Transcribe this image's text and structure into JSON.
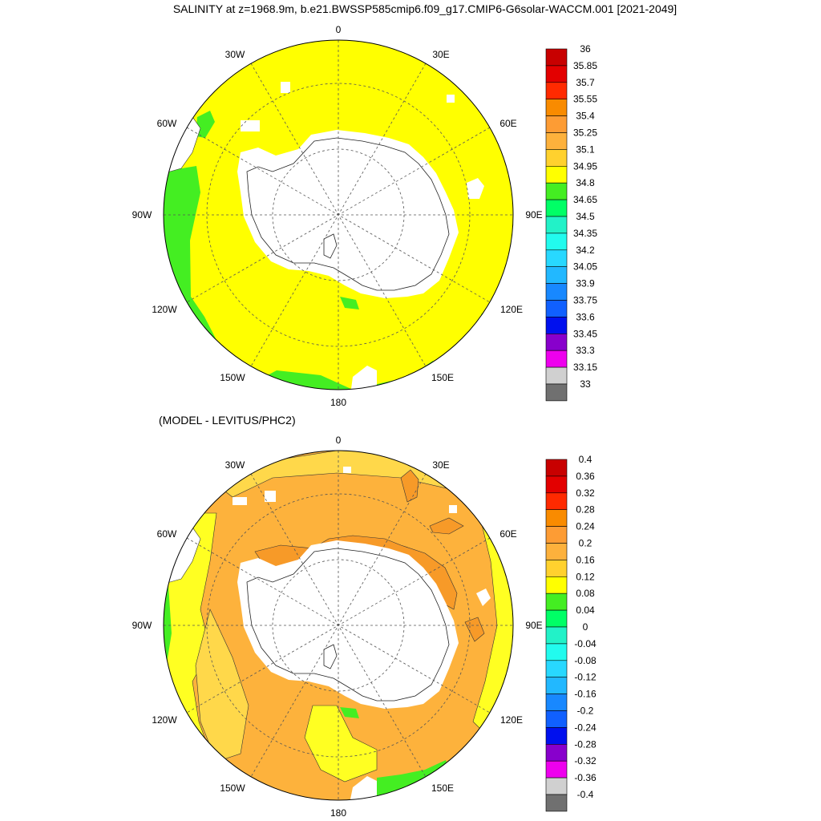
{
  "title": "SALINITY at z=1968.9m, b.e21.BWSSP585cmip6.f09_g17.CMIP6-G6solar-WACCM.001 [2021-2049]",
  "bottom_title": "(MODEL - LEVITUS/PHC2)",
  "lon_labels": {
    "l0": "0",
    "l30e": "30E",
    "l60e": "60E",
    "l90e": "90E",
    "l120e": "120E",
    "l150e": "150E",
    "l180": "180",
    "l150w": "150W",
    "l120w": "120W",
    "l90w": "90W",
    "l60w": "60W",
    "l30w": "30W"
  },
  "colors": {
    "ocean_top": "#ffff00",
    "green": "#44ee22",
    "land": "#ffffff",
    "diff_bands": [
      "#ffff22",
      "#ffd84a",
      "#fdb23c",
      "#f79a28"
    ]
  },
  "top_colorbar": {
    "labels": [
      "36",
      "35.85",
      "35.7",
      "35.55",
      "35.4",
      "35.25",
      "35.1",
      "34.95",
      "34.8",
      "34.65",
      "34.5",
      "34.35",
      "34.2",
      "34.05",
      "33.9",
      "33.75",
      "33.6",
      "33.45",
      "33.3",
      "33.15",
      "33"
    ],
    "colors": [
      "#c80000",
      "#e30000",
      "#ff2a00",
      "#f98b00",
      "#fd9c34",
      "#fdb13c",
      "#ffd12e",
      "#ffff00",
      "#44ee22",
      "#00ff66",
      "#22f2c8",
      "#22fbee",
      "#28d8ff",
      "#22b8ff",
      "#1888ff",
      "#1060ff",
      "#0010ee",
      "#8800cc",
      "#ee00ee",
      "#d0d0d0",
      "#707070"
    ]
  },
  "bottom_colorbar": {
    "labels": [
      "0.4",
      "0.36",
      "0.32",
      "0.28",
      "0.24",
      "0.2",
      "0.16",
      "0.12",
      "0.08",
      "0.04",
      "0",
      "-0.04",
      "-0.08",
      "-0.12",
      "-0.16",
      "-0.2",
      "-0.24",
      "-0.28",
      "-0.32",
      "-0.36",
      "-0.4"
    ],
    "colors": [
      "#c80000",
      "#e30000",
      "#ff2a00",
      "#f98b00",
      "#fd9c34",
      "#fdb13c",
      "#ffd12e",
      "#ffff00",
      "#44ee22",
      "#00ff66",
      "#22f2c8",
      "#22fbee",
      "#28d8ff",
      "#22b8ff",
      "#1888ff",
      "#1060ff",
      "#0010ee",
      "#8800cc",
      "#ee00ee",
      "#d0d0d0",
      "#707070"
    ]
  }
}
